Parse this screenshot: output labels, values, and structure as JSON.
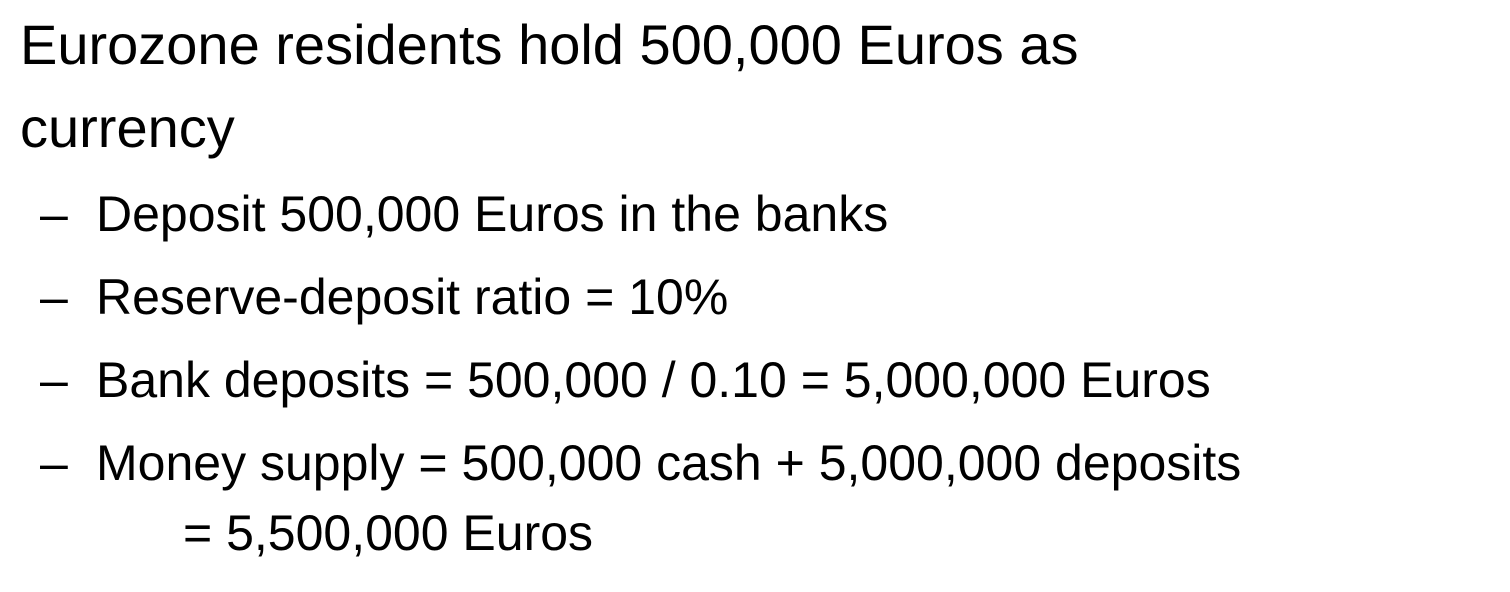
{
  "bullet": {
    "line1": "Eurozone residents hold 500,000 Euros as",
    "line2": "currency"
  },
  "dash_glyph": "–",
  "sub_bullets": [
    {
      "text": "Deposit 500,000 Euros in the banks"
    },
    {
      "text": "Reserve-deposit ratio = 10%"
    },
    {
      "text": "Bank deposits = 500,000 / 0.10 = 5,000,000 Euros"
    },
    {
      "text": "Money supply = 500,000 cash + 5,000,000 deposits",
      "continuation": "= 5,500,000 Euros"
    }
  ]
}
